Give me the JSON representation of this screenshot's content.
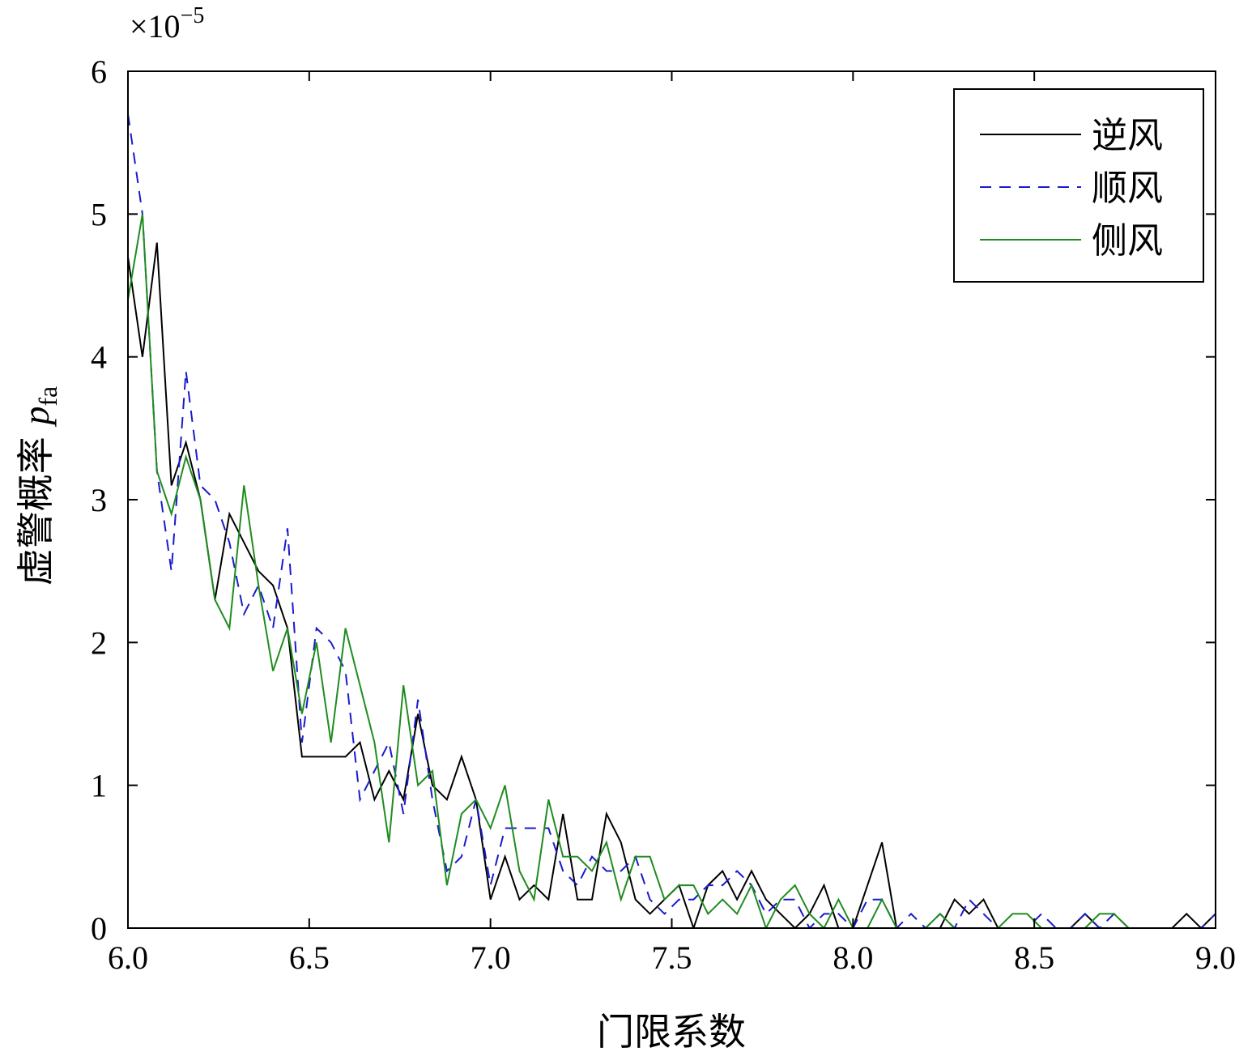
{
  "chart_data": {
    "type": "line",
    "title": "",
    "xlabel": "门限系数",
    "ylabel_main": "虚警概率",
    "ylabel_symbol": "p",
    "ylabel_subscript": "fa",
    "y_multiplier": {
      "prefix": "×10",
      "exponent": "−5"
    },
    "xlim": [
      6.0,
      9.0
    ],
    "ylim": [
      0,
      6
    ],
    "x_ticks": [
      "6.0",
      "6.5",
      "7.0",
      "7.5",
      "8.0",
      "8.5",
      "9.0"
    ],
    "y_ticks": [
      "0",
      "1",
      "2",
      "3",
      "4",
      "5",
      "6"
    ],
    "grid": false,
    "legend_position": "top-right",
    "series": [
      {
        "name": "逆风",
        "color": "#000000",
        "dash": "solid",
        "points": [
          [
            6.0,
            4.7
          ],
          [
            6.04,
            4.0
          ],
          [
            6.08,
            4.8
          ],
          [
            6.12,
            3.1
          ],
          [
            6.16,
            3.4
          ],
          [
            6.2,
            3.0
          ],
          [
            6.24,
            2.3
          ],
          [
            6.28,
            2.9
          ],
          [
            6.32,
            2.7
          ],
          [
            6.36,
            2.5
          ],
          [
            6.4,
            2.4
          ],
          [
            6.44,
            2.1
          ],
          [
            6.48,
            1.2
          ],
          [
            6.52,
            1.2
          ],
          [
            6.56,
            1.2
          ],
          [
            6.6,
            1.2
          ],
          [
            6.64,
            1.3
          ],
          [
            6.68,
            0.9
          ],
          [
            6.72,
            1.1
          ],
          [
            6.76,
            0.9
          ],
          [
            6.8,
            1.5
          ],
          [
            6.84,
            1.0
          ],
          [
            6.88,
            0.9
          ],
          [
            6.92,
            1.2
          ],
          [
            6.96,
            0.9
          ],
          [
            7.0,
            0.2
          ],
          [
            7.04,
            0.5
          ],
          [
            7.08,
            0.2
          ],
          [
            7.12,
            0.3
          ],
          [
            7.16,
            0.2
          ],
          [
            7.2,
            0.8
          ],
          [
            7.24,
            0.2
          ],
          [
            7.28,
            0.2
          ],
          [
            7.32,
            0.8
          ],
          [
            7.36,
            0.6
          ],
          [
            7.4,
            0.2
          ],
          [
            7.44,
            0.1
          ],
          [
            7.48,
            0.2
          ],
          [
            7.52,
            0.3
          ],
          [
            7.56,
            0.0
          ],
          [
            7.6,
            0.3
          ],
          [
            7.64,
            0.4
          ],
          [
            7.68,
            0.2
          ],
          [
            7.72,
            0.4
          ],
          [
            7.76,
            0.2
          ],
          [
            7.8,
            0.1
          ],
          [
            7.84,
            0.0
          ],
          [
            7.88,
            0.1
          ],
          [
            7.92,
            0.3
          ],
          [
            7.96,
            0.0
          ],
          [
            8.0,
            0.0
          ],
          [
            8.04,
            0.3
          ],
          [
            8.08,
            0.6
          ],
          [
            8.12,
            0.0
          ],
          [
            8.16,
            0.0
          ],
          [
            8.2,
            0.0
          ],
          [
            8.24,
            0.0
          ],
          [
            8.28,
            0.2
          ],
          [
            8.32,
            0.1
          ],
          [
            8.36,
            0.2
          ],
          [
            8.4,
            0.0
          ],
          [
            8.44,
            0.0
          ],
          [
            8.48,
            0.0
          ],
          [
            8.52,
            0.0
          ],
          [
            8.56,
            0.0
          ],
          [
            8.6,
            0.0
          ],
          [
            8.64,
            0.1
          ],
          [
            8.68,
            0.0
          ],
          [
            8.72,
            0.0
          ],
          [
            8.76,
            0.0
          ],
          [
            8.8,
            0.0
          ],
          [
            8.84,
            0.0
          ],
          [
            8.88,
            0.0
          ],
          [
            8.92,
            0.1
          ],
          [
            8.96,
            0.0
          ],
          [
            9.0,
            0.1
          ]
        ]
      },
      {
        "name": "顺风",
        "color": "#1a1acc",
        "dash": "dashed",
        "points": [
          [
            6.0,
            5.7
          ],
          [
            6.04,
            5.0
          ],
          [
            6.08,
            3.2
          ],
          [
            6.12,
            2.5
          ],
          [
            6.16,
            3.9
          ],
          [
            6.2,
            3.1
          ],
          [
            6.24,
            3.0
          ],
          [
            6.28,
            2.7
          ],
          [
            6.32,
            2.2
          ],
          [
            6.36,
            2.4
          ],
          [
            6.4,
            2.1
          ],
          [
            6.44,
            2.8
          ],
          [
            6.48,
            1.3
          ],
          [
            6.52,
            2.1
          ],
          [
            6.56,
            2.0
          ],
          [
            6.6,
            1.8
          ],
          [
            6.64,
            0.9
          ],
          [
            6.68,
            1.1
          ],
          [
            6.72,
            1.3
          ],
          [
            6.76,
            0.8
          ],
          [
            6.8,
            1.6
          ],
          [
            6.84,
            0.9
          ],
          [
            6.88,
            0.4
          ],
          [
            6.92,
            0.5
          ],
          [
            6.96,
            0.9
          ],
          [
            7.0,
            0.3
          ],
          [
            7.04,
            0.7
          ],
          [
            7.08,
            0.7
          ],
          [
            7.12,
            0.7
          ],
          [
            7.16,
            0.7
          ],
          [
            7.2,
            0.4
          ],
          [
            7.24,
            0.3
          ],
          [
            7.28,
            0.5
          ],
          [
            7.32,
            0.4
          ],
          [
            7.36,
            0.4
          ],
          [
            7.4,
            0.5
          ],
          [
            7.44,
            0.2
          ],
          [
            7.48,
            0.1
          ],
          [
            7.52,
            0.2
          ],
          [
            7.56,
            0.2
          ],
          [
            7.6,
            0.3
          ],
          [
            7.64,
            0.3
          ],
          [
            7.68,
            0.4
          ],
          [
            7.72,
            0.3
          ],
          [
            7.76,
            0.1
          ],
          [
            7.8,
            0.2
          ],
          [
            7.84,
            0.2
          ],
          [
            7.88,
            0.0
          ],
          [
            7.92,
            0.1
          ],
          [
            7.96,
            0.1
          ],
          [
            8.0,
            0.0
          ],
          [
            8.04,
            0.2
          ],
          [
            8.08,
            0.2
          ],
          [
            8.12,
            0.0
          ],
          [
            8.16,
            0.1
          ],
          [
            8.2,
            0.0
          ],
          [
            8.24,
            0.1
          ],
          [
            8.28,
            0.0
          ],
          [
            8.32,
            0.2
          ],
          [
            8.36,
            0.1
          ],
          [
            8.4,
            0.0
          ],
          [
            8.44,
            0.0
          ],
          [
            8.48,
            0.0
          ],
          [
            8.52,
            0.1
          ],
          [
            8.56,
            0.0
          ],
          [
            8.6,
            0.0
          ],
          [
            8.64,
            0.1
          ],
          [
            8.68,
            0.0
          ],
          [
            8.72,
            0.1
          ],
          [
            8.76,
            0.0
          ],
          [
            8.8,
            0.0
          ],
          [
            8.84,
            0.0
          ],
          [
            8.88,
            0.0
          ],
          [
            8.92,
            0.0
          ],
          [
            8.96,
            0.0
          ],
          [
            9.0,
            0.1
          ]
        ]
      },
      {
        "name": "侧风",
        "color": "#1f8c1f",
        "dash": "solid",
        "points": [
          [
            6.0,
            4.4
          ],
          [
            6.04,
            5.0
          ],
          [
            6.08,
            3.2
          ],
          [
            6.12,
            2.9
          ],
          [
            6.16,
            3.3
          ],
          [
            6.2,
            3.0
          ],
          [
            6.24,
            2.3
          ],
          [
            6.28,
            2.1
          ],
          [
            6.32,
            3.1
          ],
          [
            6.36,
            2.4
          ],
          [
            6.4,
            1.8
          ],
          [
            6.44,
            2.1
          ],
          [
            6.48,
            1.5
          ],
          [
            6.52,
            2.0
          ],
          [
            6.56,
            1.3
          ],
          [
            6.6,
            2.1
          ],
          [
            6.64,
            1.7
          ],
          [
            6.68,
            1.3
          ],
          [
            6.72,
            0.6
          ],
          [
            6.76,
            1.7
          ],
          [
            6.8,
            1.0
          ],
          [
            6.84,
            1.1
          ],
          [
            6.88,
            0.3
          ],
          [
            6.92,
            0.8
          ],
          [
            6.96,
            0.9
          ],
          [
            7.0,
            0.7
          ],
          [
            7.04,
            1.0
          ],
          [
            7.08,
            0.4
          ],
          [
            7.12,
            0.2
          ],
          [
            7.16,
            0.9
          ],
          [
            7.2,
            0.5
          ],
          [
            7.24,
            0.5
          ],
          [
            7.28,
            0.4
          ],
          [
            7.32,
            0.6
          ],
          [
            7.36,
            0.2
          ],
          [
            7.4,
            0.5
          ],
          [
            7.44,
            0.5
          ],
          [
            7.48,
            0.2
          ],
          [
            7.52,
            0.3
          ],
          [
            7.56,
            0.3
          ],
          [
            7.6,
            0.1
          ],
          [
            7.64,
            0.2
          ],
          [
            7.68,
            0.1
          ],
          [
            7.72,
            0.3
          ],
          [
            7.76,
            0.0
          ],
          [
            7.8,
            0.2
          ],
          [
            7.84,
            0.3
          ],
          [
            7.88,
            0.1
          ],
          [
            7.92,
            0.0
          ],
          [
            7.96,
            0.2
          ],
          [
            8.0,
            0.0
          ],
          [
            8.04,
            0.0
          ],
          [
            8.08,
            0.2
          ],
          [
            8.12,
            0.0
          ],
          [
            8.16,
            0.0
          ],
          [
            8.2,
            0.0
          ],
          [
            8.24,
            0.1
          ],
          [
            8.28,
            0.0
          ],
          [
            8.32,
            0.0
          ],
          [
            8.36,
            0.0
          ],
          [
            8.4,
            0.0
          ],
          [
            8.44,
            0.1
          ],
          [
            8.48,
            0.1
          ],
          [
            8.52,
            0.0
          ],
          [
            8.56,
            0.0
          ],
          [
            8.6,
            0.0
          ],
          [
            8.64,
            0.0
          ],
          [
            8.68,
            0.1
          ],
          [
            8.72,
            0.1
          ],
          [
            8.76,
            0.0
          ],
          [
            8.8,
            0.0
          ],
          [
            8.84,
            0.0
          ],
          [
            8.88,
            0.0
          ],
          [
            8.92,
            0.0
          ],
          [
            8.96,
            0.0
          ],
          [
            9.0,
            0.0
          ]
        ]
      }
    ]
  }
}
